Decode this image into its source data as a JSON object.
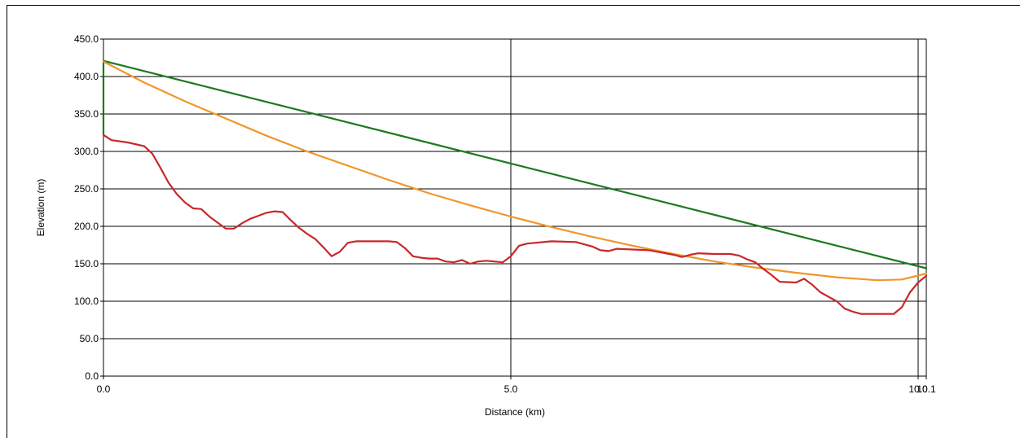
{
  "chart_data": {
    "type": "line",
    "title": "",
    "xlabel": "Distance (km)",
    "ylabel": "Elevation (m)",
    "xlim": [
      0,
      10.1
    ],
    "ylim": [
      0,
      450
    ],
    "grid": "horizontal and vertical",
    "legend": "none",
    "x_ticks": [
      {
        "value": 0,
        "label": "0.0"
      },
      {
        "value": 5,
        "label": "5.0"
      },
      {
        "value": 10,
        "label": "10.0"
      },
      {
        "value": 10.1,
        "label": "10.1"
      }
    ],
    "y_ticks": [
      {
        "value": 0,
        "label": "0.0"
      },
      {
        "value": 50,
        "label": "50.0"
      },
      {
        "value": 100,
        "label": "100.0"
      },
      {
        "value": 150,
        "label": "150.0"
      },
      {
        "value": 200,
        "label": "200.0"
      },
      {
        "value": 250,
        "label": "250.0"
      },
      {
        "value": 300,
        "label": "300.0"
      },
      {
        "value": 350,
        "label": "350.0"
      },
      {
        "value": 400,
        "label": "400.0"
      },
      {
        "value": 450,
        "label": "450.0"
      }
    ],
    "series": [
      {
        "id": "line-of-sight",
        "color": "#1e7a1e",
        "points": [
          [
            0,
            322
          ],
          [
            0,
            421
          ],
          [
            10.1,
            144
          ]
        ]
      },
      {
        "id": "curved-path",
        "color": "#f0962a",
        "points": [
          [
            0,
            420
          ],
          [
            0.5,
            392
          ],
          [
            1.0,
            367
          ],
          [
            1.5,
            344
          ],
          [
            2.0,
            321
          ],
          [
            2.5,
            300
          ],
          [
            3.0,
            281
          ],
          [
            3.5,
            262
          ],
          [
            4.0,
            244
          ],
          [
            4.5,
            228
          ],
          [
            5.0,
            213
          ],
          [
            5.5,
            199
          ],
          [
            6.0,
            186
          ],
          [
            6.5,
            174
          ],
          [
            7.0,
            163
          ],
          [
            7.5,
            153
          ],
          [
            8.0,
            145
          ],
          [
            8.5,
            138
          ],
          [
            9.0,
            132
          ],
          [
            9.5,
            128
          ],
          [
            9.8,
            129
          ],
          [
            10.1,
            137
          ]
        ]
      },
      {
        "id": "terrain-profile",
        "color": "#c8282a",
        "points": [
          [
            0,
            322
          ],
          [
            0.1,
            315
          ],
          [
            0.3,
            312
          ],
          [
            0.5,
            307
          ],
          [
            0.6,
            297
          ],
          [
            0.7,
            278
          ],
          [
            0.8,
            258
          ],
          [
            0.9,
            243
          ],
          [
            1.0,
            232
          ],
          [
            1.1,
            224
          ],
          [
            1.2,
            223
          ],
          [
            1.3,
            213
          ],
          [
            1.4,
            205
          ],
          [
            1.5,
            197
          ],
          [
            1.6,
            197
          ],
          [
            1.7,
            204
          ],
          [
            1.8,
            210
          ],
          [
            1.9,
            214
          ],
          [
            2.0,
            218
          ],
          [
            2.1,
            220
          ],
          [
            2.2,
            219
          ],
          [
            2.3,
            208
          ],
          [
            2.4,
            198
          ],
          [
            2.5,
            190
          ],
          [
            2.6,
            183
          ],
          [
            2.7,
            172
          ],
          [
            2.8,
            160
          ],
          [
            2.9,
            166
          ],
          [
            3.0,
            178
          ],
          [
            3.1,
            180
          ],
          [
            3.3,
            180
          ],
          [
            3.5,
            180
          ],
          [
            3.6,
            179
          ],
          [
            3.7,
            171
          ],
          [
            3.8,
            160
          ],
          [
            3.9,
            158
          ],
          [
            4.0,
            157
          ],
          [
            4.1,
            157
          ],
          [
            4.2,
            153
          ],
          [
            4.3,
            152
          ],
          [
            4.4,
            155
          ],
          [
            4.5,
            150
          ],
          [
            4.6,
            153
          ],
          [
            4.7,
            154
          ],
          [
            4.9,
            152
          ],
          [
            5.0,
            160
          ],
          [
            5.1,
            174
          ],
          [
            5.2,
            177
          ],
          [
            5.5,
            180
          ],
          [
            5.8,
            179
          ],
          [
            5.9,
            176
          ],
          [
            6.0,
            173
          ],
          [
            6.1,
            168
          ],
          [
            6.2,
            167
          ],
          [
            6.3,
            170
          ],
          [
            6.5,
            169
          ],
          [
            6.7,
            168
          ],
          [
            6.8,
            166
          ],
          [
            7.0,
            162
          ],
          [
            7.1,
            159
          ],
          [
            7.2,
            162
          ],
          [
            7.3,
            164
          ],
          [
            7.5,
            163
          ],
          [
            7.7,
            163
          ],
          [
            7.8,
            161
          ],
          [
            7.9,
            156
          ],
          [
            8.0,
            152
          ],
          [
            8.1,
            143
          ],
          [
            8.2,
            135
          ],
          [
            8.3,
            126
          ],
          [
            8.5,
            125
          ],
          [
            8.6,
            130
          ],
          [
            8.7,
            122
          ],
          [
            8.8,
            112
          ],
          [
            9.0,
            100
          ],
          [
            9.1,
            90
          ],
          [
            9.2,
            86
          ],
          [
            9.3,
            83
          ],
          [
            9.5,
            83
          ],
          [
            9.7,
            83
          ],
          [
            9.8,
            92
          ],
          [
            9.9,
            112
          ],
          [
            10.0,
            125
          ],
          [
            10.1,
            134
          ]
        ]
      }
    ]
  }
}
